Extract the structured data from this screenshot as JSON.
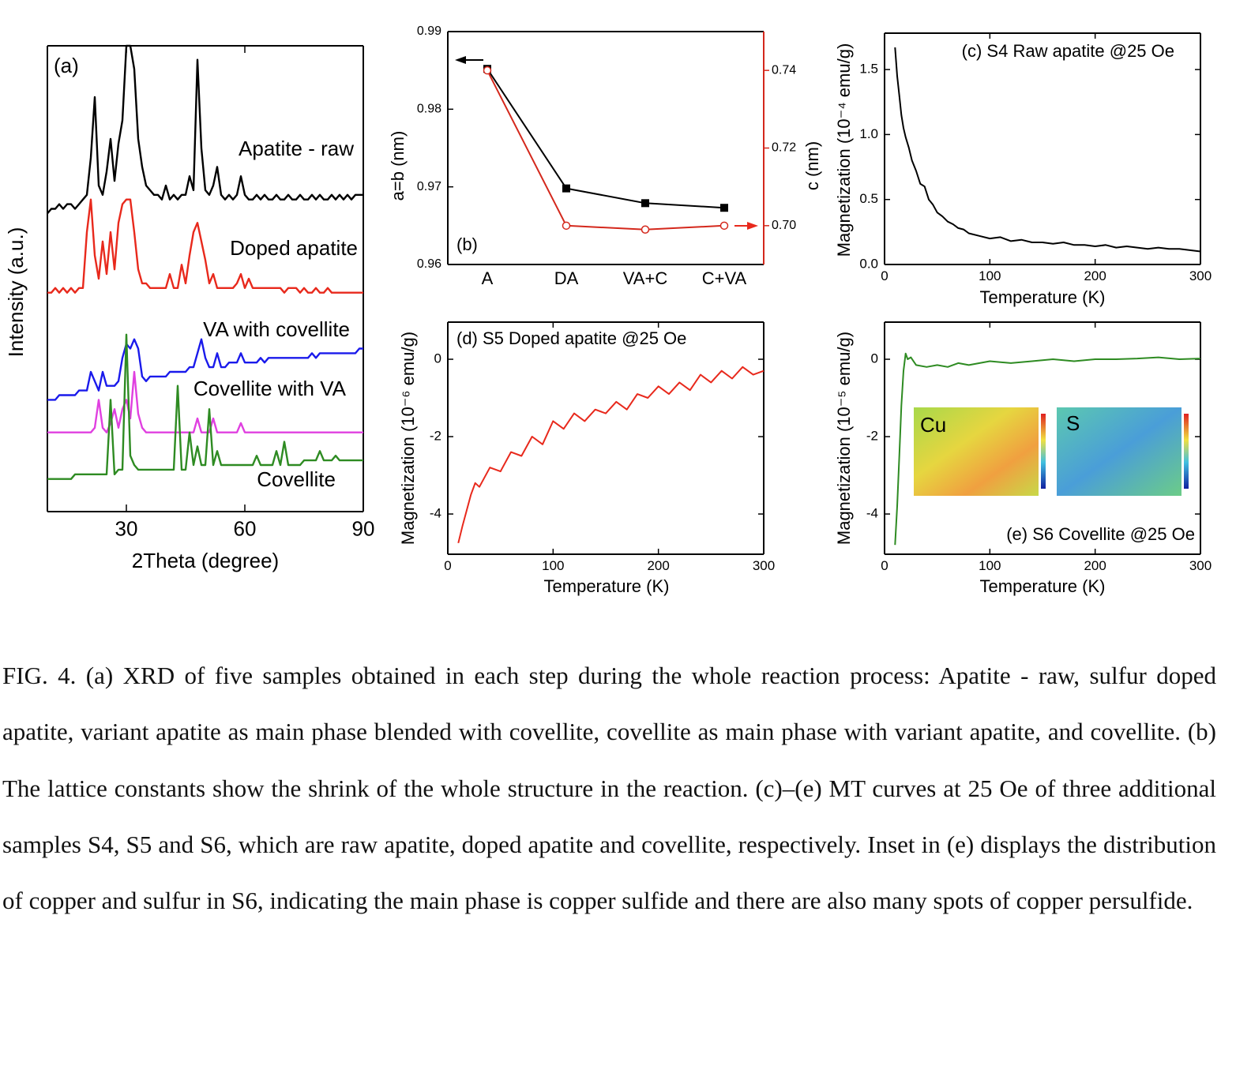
{
  "chart_data": [
    {
      "type": "line",
      "title": "(a)",
      "xlabel": "2Theta (degree)",
      "ylabel": "Intensity (a.u.)",
      "xlim": [
        10,
        90
      ],
      "xticks": [
        30,
        60,
        90
      ],
      "ylim": [
        0,
        100
      ],
      "x": [
        10,
        11,
        12,
        13,
        14,
        15,
        16,
        17,
        18,
        19,
        20,
        21,
        22,
        23,
        24,
        25,
        26,
        27,
        28,
        29,
        30,
        31,
        32,
        33,
        34,
        35,
        36,
        37,
        38,
        39,
        40,
        41,
        42,
        43,
        44,
        45,
        46,
        47,
        48,
        49,
        50,
        51,
        52,
        53,
        54,
        55,
        56,
        57,
        58,
        59,
        60,
        61,
        62,
        63,
        64,
        65,
        66,
        67,
        68,
        69,
        70,
        71,
        72,
        73,
        74,
        75,
        76,
        77,
        78,
        79,
        80,
        81,
        82,
        83,
        84,
        85,
        86,
        87,
        88,
        89,
        90
      ],
      "series": [
        {
          "name": "Apatite - raw",
          "color": "#000000",
          "values": [
            64,
            65,
            65,
            66,
            65,
            66,
            66,
            65,
            66,
            67,
            68,
            76,
            89,
            70,
            68,
            73,
            80,
            71,
            79,
            84,
            100,
            100,
            95,
            80,
            74,
            70,
            69,
            68,
            68,
            67,
            70,
            67,
            68,
            67,
            68,
            68,
            72,
            69,
            97,
            78,
            69,
            68,
            70,
            74,
            68,
            67,
            68,
            67,
            68,
            72,
            68,
            67,
            67,
            68,
            67,
            68,
            67,
            67,
            68,
            67,
            67,
            68,
            67,
            67,
            68,
            67,
            67,
            68,
            67,
            68,
            67,
            67,
            68,
            67,
            68,
            67,
            68,
            67,
            68,
            68,
            68
          ]
        },
        {
          "name": "Doped apatite",
          "color": "#e8291c",
          "values": [
            47,
            47,
            48,
            47,
            48,
            47,
            48,
            47,
            48,
            48,
            60,
            67,
            55,
            50,
            58,
            51,
            60,
            52,
            62,
            66,
            67,
            67,
            60,
            52,
            49,
            49,
            48,
            48,
            48,
            48,
            48,
            51,
            48,
            48,
            53,
            49,
            55,
            60,
            62,
            58,
            54,
            49,
            51,
            48,
            48,
            48,
            48,
            48,
            49,
            51,
            48,
            50,
            48,
            48,
            48,
            48,
            48,
            48,
            48,
            48,
            47,
            48,
            48,
            48,
            47,
            48,
            47,
            47,
            48,
            47,
            47,
            48,
            47,
            47,
            47,
            47,
            47,
            47,
            47,
            47,
            47
          ]
        },
        {
          "name": "VA with covellite",
          "color": "#1a1aeb",
          "values": [
            24,
            24,
            24,
            25,
            25,
            25,
            25,
            25,
            26,
            26,
            26,
            30,
            28,
            26,
            30,
            27,
            27,
            27,
            28,
            33,
            36,
            35,
            37,
            35,
            29,
            28,
            29,
            29,
            29,
            29,
            29,
            30,
            30,
            30,
            30,
            30,
            31,
            31,
            34,
            37,
            33,
            31,
            31,
            34,
            31,
            31,
            32,
            32,
            32,
            34,
            32,
            32,
            32,
            32,
            33,
            32,
            33,
            33,
            33,
            33,
            33,
            33,
            33,
            33,
            33,
            33,
            33,
            34,
            33,
            34,
            34,
            34,
            34,
            34,
            34,
            34,
            34,
            34,
            34,
            35,
            35
          ]
        },
        {
          "name": "Covellite with VA",
          "color": "#e040e0",
          "values": [
            17,
            17,
            17,
            17,
            17,
            17,
            17,
            17,
            17,
            17,
            17,
            17,
            18,
            24,
            18,
            17,
            19,
            22,
            18,
            22,
            24,
            20,
            30,
            21,
            18,
            17,
            17,
            17,
            17,
            17,
            17,
            17,
            17,
            17,
            17,
            17,
            17,
            17,
            20,
            17,
            17,
            17,
            20,
            17,
            17,
            17,
            17,
            17,
            17,
            19,
            17,
            17,
            17,
            17,
            17,
            17,
            17,
            17,
            17,
            17,
            17,
            17,
            17,
            17,
            17,
            17,
            17,
            17,
            17,
            17,
            17,
            17,
            17,
            17,
            17,
            17,
            17,
            17,
            17,
            17,
            17
          ]
        },
        {
          "name": "Covellite",
          "color": "#2e8b22",
          "values": [
            7,
            7,
            7,
            7,
            7,
            7,
            7,
            8,
            8,
            8,
            8,
            8,
            8,
            8,
            8,
            8,
            24,
            8,
            9,
            9,
            38,
            12,
            10,
            9,
            9,
            9,
            9,
            9,
            9,
            9,
            9,
            9,
            9,
            27,
            9,
            9,
            17,
            10,
            14,
            10,
            10,
            22,
            10,
            13,
            10,
            10,
            10,
            10,
            10,
            10,
            10,
            10,
            10,
            12,
            10,
            10,
            10,
            10,
            13,
            10,
            15,
            10,
            10,
            10,
            10,
            11,
            11,
            11,
            11,
            13,
            11,
            11,
            11,
            12,
            11,
            11,
            11,
            11,
            11,
            11,
            11
          ]
        }
      ]
    },
    {
      "type": "line",
      "title": "(b)",
      "ylabel": "a=b (nm)",
      "y2label": "c (nm)",
      "categories": [
        "A",
        "DA",
        "VA+C",
        "C+VA"
      ],
      "ylim": [
        0.96,
        0.99
      ],
      "yticks": [
        0.96,
        0.97,
        0.98,
        0.99
      ],
      "y2lim": [
        0.69,
        0.75
      ],
      "y2ticks": [
        {
          "value": 0.7,
          "label": "0.70"
        },
        0.72,
        0.74
      ],
      "series": [
        {
          "color": "#000000",
          "marker": "square",
          "values": [
            0.9852,
            0.9698,
            0.9679,
            0.9673
          ]
        },
        {
          "color": "#d4281c",
          "marker": "circle",
          "axis": "y2",
          "values": [
            0.74,
            0.7,
            0.699,
            0.7
          ]
        }
      ]
    },
    {
      "type": "line",
      "title": "(c) S4 Raw apatite @25 Oe",
      "xlabel": "Temperature (K)",
      "ylabel": "Magnetization (10⁻⁴ emu/g)",
      "xlim": [
        0,
        300
      ],
      "xticks": [
        0,
        100,
        200,
        300
      ],
      "ylim": [
        0,
        1.78
      ],
      "yticks": [
        {
          "value": 0,
          "label": "0.0"
        },
        0.5,
        {
          "value": 1,
          "label": "1.0"
        },
        1.5
      ],
      "x": [
        10,
        12,
        14,
        16,
        18,
        20,
        23,
        26,
        30,
        34,
        38,
        42,
        46,
        50,
        55,
        60,
        65,
        70,
        75,
        80,
        90,
        100,
        110,
        120,
        130,
        140,
        150,
        160,
        170,
        180,
        190,
        200,
        210,
        220,
        230,
        240,
        250,
        260,
        270,
        280,
        290,
        300
      ],
      "series": [
        {
          "color": "#000000",
          "values": [
            1.67,
            1.45,
            1.3,
            1.15,
            1.05,
            0.98,
            0.9,
            0.8,
            0.72,
            0.62,
            0.6,
            0.5,
            0.46,
            0.4,
            0.37,
            0.33,
            0.31,
            0.28,
            0.27,
            0.24,
            0.22,
            0.2,
            0.21,
            0.18,
            0.19,
            0.17,
            0.17,
            0.16,
            0.17,
            0.15,
            0.15,
            0.14,
            0.15,
            0.13,
            0.14,
            0.13,
            0.12,
            0.13,
            0.12,
            0.12,
            0.11,
            0.1
          ]
        }
      ]
    },
    {
      "type": "line",
      "title": "(d) S5 Doped apatite @25 Oe",
      "xlabel": "Temperature (K)",
      "ylabel": "Magnetization (10⁻⁶ emu/g)",
      "xlim": [
        0,
        300
      ],
      "xticks": [
        0,
        100,
        200,
        300
      ],
      "ylim": [
        -5.04,
        0.96
      ],
      "yticks": [
        -4,
        -2,
        0
      ],
      "x": [
        10,
        14,
        18,
        22,
        26,
        30,
        40,
        50,
        60,
        70,
        80,
        90,
        100,
        110,
        120,
        130,
        140,
        150,
        160,
        170,
        180,
        190,
        200,
        210,
        220,
        230,
        240,
        250,
        260,
        270,
        280,
        290,
        300
      ],
      "series": [
        {
          "color": "#e8291c",
          "values": [
            -4.75,
            -4.3,
            -3.9,
            -3.5,
            -3.2,
            -3.3,
            -2.8,
            -2.9,
            -2.4,
            -2.5,
            -2.0,
            -2.2,
            -1.6,
            -1.8,
            -1.4,
            -1.6,
            -1.3,
            -1.4,
            -1.1,
            -1.3,
            -0.9,
            -1.0,
            -0.7,
            -0.9,
            -0.6,
            -0.8,
            -0.4,
            -0.6,
            -0.3,
            -0.5,
            -0.2,
            -0.4,
            -0.3
          ]
        }
      ]
    },
    {
      "type": "line",
      "title": "(e) S6 Covellite @25 Oe",
      "xlabel": "Temperature (K)",
      "ylabel": "Magnetization (10⁻⁵ emu/g)",
      "xlim": [
        0,
        300
      ],
      "xticks": [
        0,
        100,
        200,
        300
      ],
      "ylim": [
        -5.04,
        0.96
      ],
      "yticks": [
        -4,
        -2,
        0
      ],
      "inset_labels": [
        "Cu",
        "S"
      ],
      "x": [
        10,
        12,
        14,
        16,
        18,
        20,
        22,
        25,
        30,
        40,
        50,
        60,
        70,
        80,
        100,
        120,
        140,
        160,
        180,
        200,
        220,
        240,
        260,
        280,
        300
      ],
      "series": [
        {
          "color": "#2e8b22",
          "values": [
            -4.8,
            -3.8,
            -2.5,
            -1.2,
            -0.3,
            0.15,
            0.0,
            0.05,
            -0.15,
            -0.2,
            -0.15,
            -0.2,
            -0.1,
            -0.15,
            -0.05,
            -0.1,
            -0.05,
            0.0,
            -0.05,
            0.0,
            0.0,
            0.02,
            0.05,
            0.0,
            0.02
          ]
        }
      ]
    }
  ],
  "caption": "FIG. 4. (a) XRD of five samples obtained in each step during the whole reaction process: Apatite - raw, sulfur doped apatite, variant apatite as main phase blended with covellite, covellite as main phase with variant apatite, and covellite. (b) The lattice constants show the shrink of the whole structure in the reaction. (c)–(e) MT curves at 25 Oe of three additional samples S4, S5 and S6, which are raw apatite, doped apatite and covellite, respectively. Inset in (e) displays the distribution of copper and sulfur in S6, indicating the main phase is copper sulfide and there are also many spots of copper persulfide."
}
